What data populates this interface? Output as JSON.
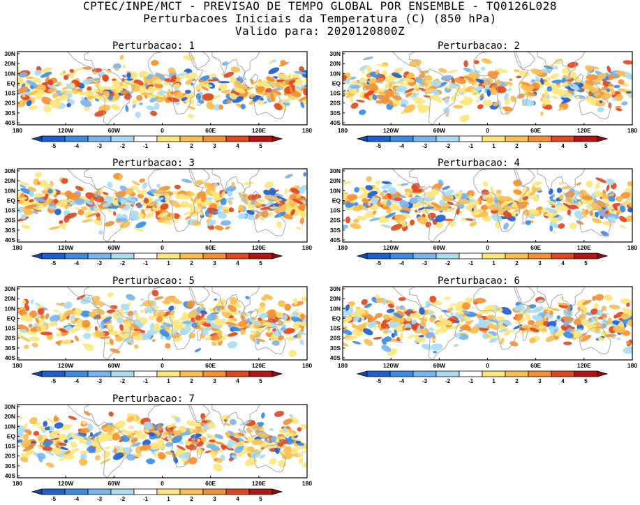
{
  "header": {
    "line1": "CPTEC/INPE/MCT - PREVISAO DE TEMPO GLOBAL POR ENSEMBLE - TQ0126L028",
    "line2": "Perturbacoes Iniciais da Temperatura (C) (850 hPa)",
    "line3": "Valido para: 2020120800Z"
  },
  "map": {
    "lat_labels": [
      "30N",
      "20N",
      "10N",
      "EQ",
      "10S",
      "20S",
      "30S",
      "40S"
    ],
    "lon_labels": [
      "180",
      "120W",
      "60W",
      "0",
      "60E",
      "120E",
      "180"
    ]
  },
  "colorbar": {
    "labels": [
      "-5",
      "-4",
      "-3",
      "-2",
      "-1",
      "1",
      "2",
      "3",
      "4",
      "5"
    ],
    "colors": [
      "#1e5fd2",
      "#3c8ce6",
      "#78b4f0",
      "#a8dcf5",
      "#ffffff",
      "#fde67d",
      "#fbbe50",
      "#f59032",
      "#e2461e",
      "#b41414"
    ],
    "under_color": "#1546b4",
    "over_color": "#960a0a"
  },
  "panels": [
    {
      "title": "Perturbacao: 1",
      "seed": 11
    },
    {
      "title": "Perturbacao: 2",
      "seed": 23
    },
    {
      "title": "Perturbacao: 3",
      "seed": 37
    },
    {
      "title": "Perturbacao: 4",
      "seed": 41
    },
    {
      "title": "Perturbacao: 5",
      "seed": 53
    },
    {
      "title": "Perturbacao: 6",
      "seed": 67
    },
    {
      "title": "Perturbacao: 7",
      "seed": 79
    }
  ]
}
